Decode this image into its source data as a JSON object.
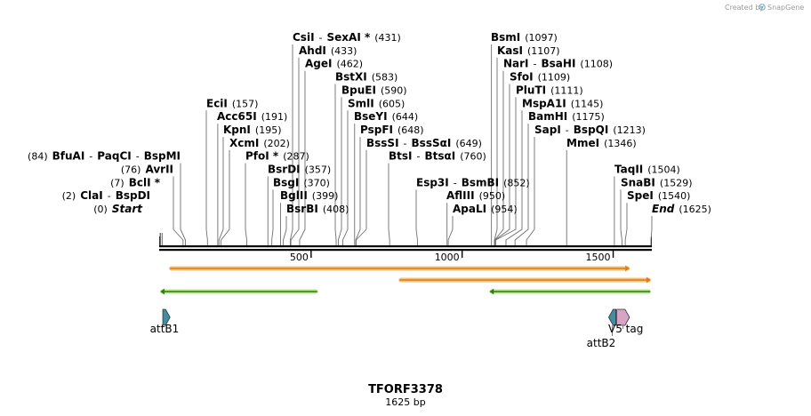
{
  "credit": "Created by",
  "brand": "SnapGene",
  "title": "TFORF3378",
  "subtitle": "1625 bp",
  "sequence_length": 1625,
  "colors": {
    "orange_fill": "#f6c27b",
    "orange_stroke": "#e07b18",
    "green_fill": "#b9e58a",
    "green_stroke": "#2f7d14",
    "attB_fill": "#3f8ea6",
    "v5_fill": "#d6a4c4"
  },
  "scale_ticks": [
    {
      "value": 500,
      "label": "500"
    },
    {
      "value": 1000,
      "label": "1000"
    },
    {
      "value": 1500,
      "label": "1500"
    }
  ],
  "sites": [
    {
      "parts": [
        {
          "t": "(84)",
          "c": "pos"
        },
        {
          "t": "BfuAI",
          "c": "name"
        },
        {
          "t": "-",
          "c": "pos"
        },
        {
          "t": "PaqCI",
          "c": "name"
        },
        {
          "t": "-",
          "c": "pos"
        },
        {
          "t": "BspMI",
          "c": "name"
        }
      ],
      "cut": 84,
      "align": "right"
    },
    {
      "parts": [
        {
          "t": "(76)",
          "c": "pos"
        },
        {
          "t": "AvrII",
          "c": "name"
        }
      ],
      "cut": 76,
      "align": "right"
    },
    {
      "parts": [
        {
          "t": "(7)",
          "c": "pos"
        },
        {
          "t": "BclI *",
          "c": "name"
        }
      ],
      "cut": 7,
      "align": "right"
    },
    {
      "parts": [
        {
          "t": "(2)",
          "c": "pos"
        },
        {
          "t": "ClaI",
          "c": "name"
        },
        {
          "t": "-",
          "c": "pos"
        },
        {
          "t": "BspDI",
          "c": "name"
        }
      ],
      "cut": 2,
      "align": "right"
    },
    {
      "parts": [
        {
          "t": "(0)",
          "c": "pos"
        },
        {
          "t": "Start",
          "c": "ital"
        }
      ],
      "cut": 0,
      "align": "right"
    },
    {
      "parts": [
        {
          "t": "EciI",
          "c": "name"
        },
        {
          "t": "(157)",
          "c": "pos"
        }
      ],
      "cut": 157,
      "align": "left"
    },
    {
      "parts": [
        {
          "t": "Acc65I",
          "c": "name"
        },
        {
          "t": "(191)",
          "c": "pos"
        }
      ],
      "cut": 191,
      "align": "left"
    },
    {
      "parts": [
        {
          "t": "KpnI",
          "c": "name"
        },
        {
          "t": "(195)",
          "c": "pos"
        }
      ],
      "cut": 195,
      "align": "left"
    },
    {
      "parts": [
        {
          "t": "XcmI",
          "c": "name"
        },
        {
          "t": "(202)",
          "c": "pos"
        }
      ],
      "cut": 202,
      "align": "left"
    },
    {
      "parts": [
        {
          "t": "PfoI *",
          "c": "name"
        },
        {
          "t": "(287)",
          "c": "pos"
        }
      ],
      "cut": 287,
      "align": "left"
    },
    {
      "parts": [
        {
          "t": "BsrDI",
          "c": "name"
        },
        {
          "t": "(357)",
          "c": "pos"
        }
      ],
      "cut": 357,
      "align": "left"
    },
    {
      "parts": [
        {
          "t": "BsgI",
          "c": "name"
        },
        {
          "t": "(370)",
          "c": "pos"
        }
      ],
      "cut": 370,
      "align": "left"
    },
    {
      "parts": [
        {
          "t": "BglII",
          "c": "name"
        },
        {
          "t": "(399)",
          "c": "pos"
        }
      ],
      "cut": 399,
      "align": "left"
    },
    {
      "parts": [
        {
          "t": "BsrBI",
          "c": "name"
        },
        {
          "t": "(408)",
          "c": "pos"
        }
      ],
      "cut": 408,
      "align": "left"
    },
    {
      "parts": [
        {
          "t": "CsiI",
          "c": "name"
        },
        {
          "t": "-",
          "c": "pos"
        },
        {
          "t": "SexAI *",
          "c": "name"
        },
        {
          "t": "(431)",
          "c": "pos"
        }
      ],
      "cut": 431,
      "align": "left"
    },
    {
      "parts": [
        {
          "t": "AhdI",
          "c": "name"
        },
        {
          "t": "(433)",
          "c": "pos"
        }
      ],
      "cut": 433,
      "align": "left"
    },
    {
      "parts": [
        {
          "t": "AgeI",
          "c": "name"
        },
        {
          "t": "(462)",
          "c": "pos"
        }
      ],
      "cut": 462,
      "align": "left"
    },
    {
      "parts": [
        {
          "t": "BstXI",
          "c": "name"
        },
        {
          "t": "(583)",
          "c": "pos"
        }
      ],
      "cut": 583,
      "align": "left"
    },
    {
      "parts": [
        {
          "t": "BpuEI",
          "c": "name"
        },
        {
          "t": "(590)",
          "c": "pos"
        }
      ],
      "cut": 590,
      "align": "left"
    },
    {
      "parts": [
        {
          "t": "SmlI",
          "c": "name"
        },
        {
          "t": "(605)",
          "c": "pos"
        }
      ],
      "cut": 605,
      "align": "left"
    },
    {
      "parts": [
        {
          "t": "BseYI",
          "c": "name"
        },
        {
          "t": "(644)",
          "c": "pos"
        }
      ],
      "cut": 644,
      "align": "left"
    },
    {
      "parts": [
        {
          "t": "PspFI",
          "c": "name"
        },
        {
          "t": "(648)",
          "c": "pos"
        }
      ],
      "cut": 648,
      "align": "left"
    },
    {
      "parts": [
        {
          "t": "BssSI",
          "c": "name"
        },
        {
          "t": "-",
          "c": "pos"
        },
        {
          "t": "BssSαI",
          "c": "name"
        },
        {
          "t": "(649)",
          "c": "pos"
        }
      ],
      "cut": 649,
      "align": "left"
    },
    {
      "parts": [
        {
          "t": "BtsI",
          "c": "name"
        },
        {
          "t": "-",
          "c": "pos"
        },
        {
          "t": "BtsαI",
          "c": "name"
        },
        {
          "t": "(760)",
          "c": "pos"
        }
      ],
      "cut": 760,
      "align": "left"
    },
    {
      "parts": [
        {
          "t": "Esp3I",
          "c": "name"
        },
        {
          "t": "-",
          "c": "pos"
        },
        {
          "t": "BsmBI",
          "c": "name"
        },
        {
          "t": "(852)",
          "c": "pos"
        }
      ],
      "cut": 852,
      "align": "left"
    },
    {
      "parts": [
        {
          "t": "AflIII",
          "c": "name"
        },
        {
          "t": "(950)",
          "c": "pos"
        }
      ],
      "cut": 950,
      "align": "left"
    },
    {
      "parts": [
        {
          "t": "ApaLI",
          "c": "name"
        },
        {
          "t": "(954)",
          "c": "pos"
        }
      ],
      "cut": 954,
      "align": "left"
    },
    {
      "parts": [
        {
          "t": "BsmI",
          "c": "name"
        },
        {
          "t": "(1097)",
          "c": "pos"
        }
      ],
      "cut": 1097,
      "align": "left"
    },
    {
      "parts": [
        {
          "t": "KasI",
          "c": "name"
        },
        {
          "t": "(1107)",
          "c": "pos"
        }
      ],
      "cut": 1107,
      "align": "left"
    },
    {
      "parts": [
        {
          "t": "NarI",
          "c": "name"
        },
        {
          "t": "-",
          "c": "pos"
        },
        {
          "t": "BsaHI",
          "c": "name"
        },
        {
          "t": "(1108)",
          "c": "pos"
        }
      ],
      "cut": 1108,
      "align": "left"
    },
    {
      "parts": [
        {
          "t": "SfoI",
          "c": "name"
        },
        {
          "t": "(1109)",
          "c": "pos"
        }
      ],
      "cut": 1109,
      "align": "left"
    },
    {
      "parts": [
        {
          "t": "PluTI",
          "c": "name"
        },
        {
          "t": "(1111)",
          "c": "pos"
        }
      ],
      "cut": 1111,
      "align": "left"
    },
    {
      "parts": [
        {
          "t": "MspA1I",
          "c": "name"
        },
        {
          "t": "(1145)",
          "c": "pos"
        }
      ],
      "cut": 1145,
      "align": "left"
    },
    {
      "parts": [
        {
          "t": "BamHI",
          "c": "name"
        },
        {
          "t": "(1175)",
          "c": "pos"
        }
      ],
      "cut": 1175,
      "align": "left"
    },
    {
      "parts": [
        {
          "t": "SapI",
          "c": "name"
        },
        {
          "t": "-",
          "c": "pos"
        },
        {
          "t": "BspQI",
          "c": "name"
        },
        {
          "t": "(1213)",
          "c": "pos"
        }
      ],
      "cut": 1213,
      "align": "left"
    },
    {
      "parts": [
        {
          "t": "MmeI",
          "c": "name"
        },
        {
          "t": "(1346)",
          "c": "pos"
        }
      ],
      "cut": 1346,
      "align": "left"
    },
    {
      "parts": [
        {
          "t": "TaqII",
          "c": "name"
        },
        {
          "t": "(1504)",
          "c": "pos"
        }
      ],
      "cut": 1504,
      "align": "left"
    },
    {
      "parts": [
        {
          "t": "SnaBI",
          "c": "name"
        },
        {
          "t": "(1529)",
          "c": "pos"
        }
      ],
      "cut": 1529,
      "align": "left"
    },
    {
      "parts": [
        {
          "t": "SpeI",
          "c": "name"
        },
        {
          "t": "(1540)",
          "c": "pos"
        }
      ],
      "cut": 1540,
      "align": "left"
    },
    {
      "parts": [
        {
          "t": "End",
          "c": "ital"
        },
        {
          "t": "(1625)",
          "c": "pos"
        }
      ],
      "cut": 1625,
      "align": "left"
    }
  ],
  "orfs": [
    {
      "start": 30,
      "end": 1555,
      "direction": "forward"
    },
    {
      "start": 790,
      "end": 1625,
      "direction": "forward"
    },
    {
      "start": 0,
      "end": 523,
      "direction": "reverse"
    },
    {
      "start": 1090,
      "end": 1625,
      "direction": "reverse"
    }
  ],
  "features": [
    {
      "name": "attB1",
      "start": 9,
      "end": 33,
      "direction": "forward",
      "color": "#3f8ea6"
    },
    {
      "name": "attB2",
      "start": 1485,
      "end": 1509,
      "direction": "reverse",
      "color": "#3f8ea6"
    },
    {
      "name": "V5 tag",
      "start": 1512,
      "end": 1554,
      "direction": "forward",
      "color": "#d6a4c4"
    }
  ]
}
